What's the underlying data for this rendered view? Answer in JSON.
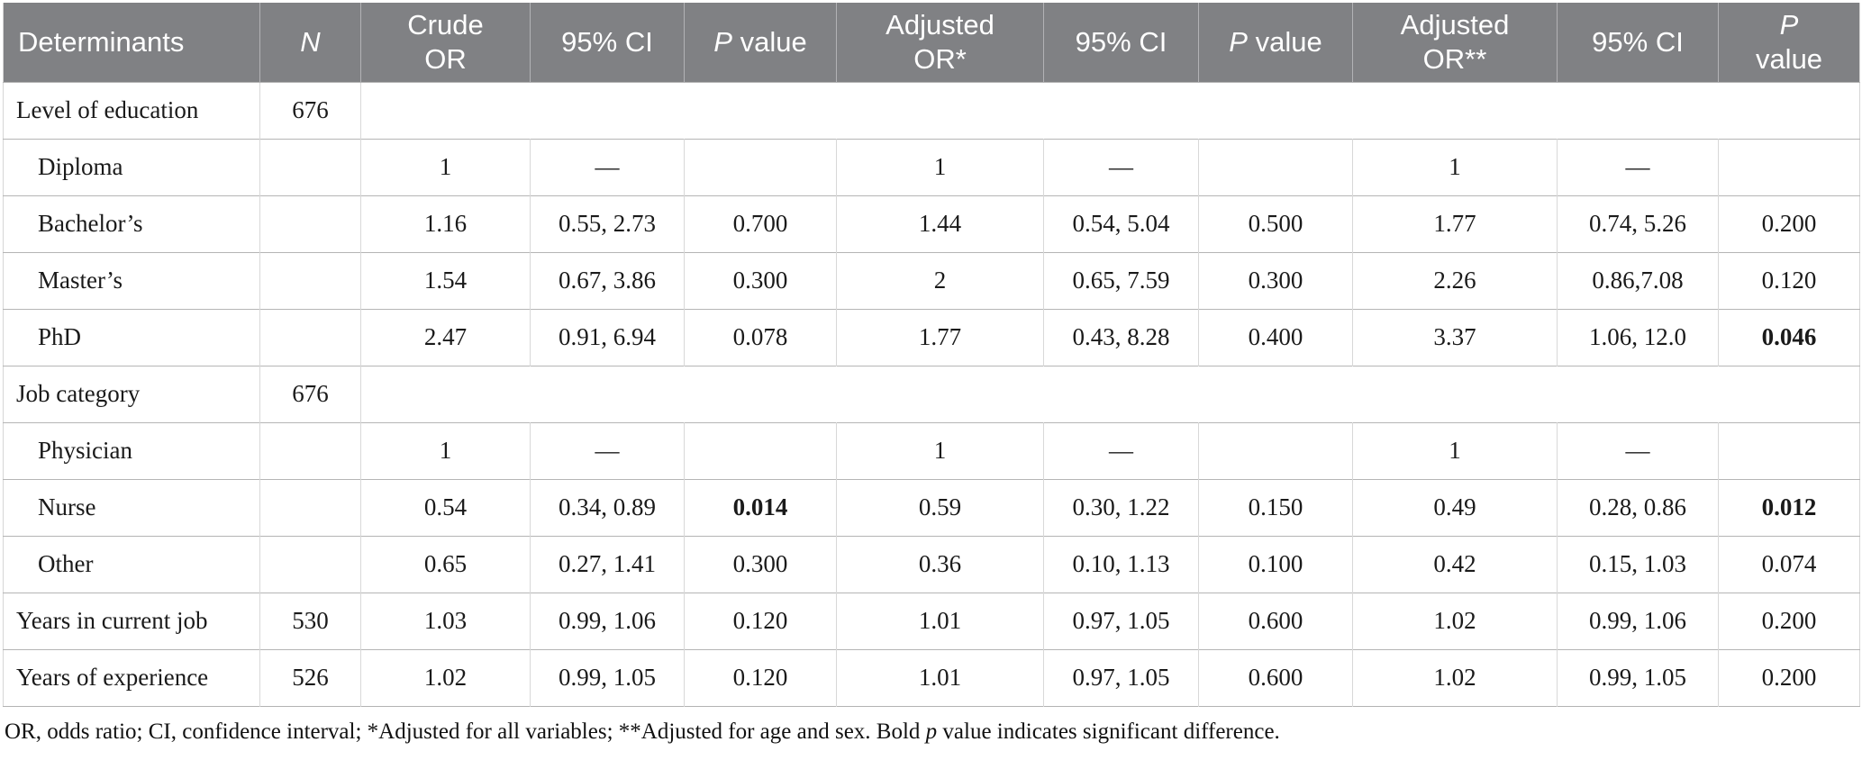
{
  "colors": {
    "header_bg": "#808184",
    "header_text": "#ffffff",
    "row_border": "#b5b5b5",
    "col_border": "#d8d8d8"
  },
  "table": {
    "columns": [
      {
        "label": "Determinants",
        "italic": "none"
      },
      {
        "label": "N",
        "italic": "full"
      },
      {
        "label": "Crude OR",
        "italic": "none"
      },
      {
        "label": "95% CI",
        "italic": "none"
      },
      {
        "label": "P value",
        "italic": "lead"
      },
      {
        "label": "Adjusted OR*",
        "italic": "none"
      },
      {
        "label": "95% CI",
        "italic": "none"
      },
      {
        "label": "P value",
        "italic": "lead"
      },
      {
        "label": "Adjusted OR**",
        "italic": "none"
      },
      {
        "label": "95% CI",
        "italic": "none"
      },
      {
        "label": "P value",
        "italic": "lead"
      }
    ],
    "rows": [
      {
        "label": "Level of education",
        "n": "676",
        "indent": false,
        "merged": true,
        "cells": [],
        "bold_cells": []
      },
      {
        "label": "Diploma",
        "n": "",
        "indent": true,
        "merged": false,
        "cells": [
          "1",
          "—",
          "",
          "1",
          "—",
          "",
          "1",
          "—",
          ""
        ],
        "bold_cells": []
      },
      {
        "label": "Bachelor’s",
        "n": "",
        "indent": true,
        "merged": false,
        "cells": [
          "1.16",
          "0.55, 2.73",
          "0.700",
          "1.44",
          "0.54, 5.04",
          "0.500",
          "1.77",
          "0.74, 5.26",
          "0.200"
        ],
        "bold_cells": []
      },
      {
        "label": "Master’s",
        "n": "",
        "indent": true,
        "merged": false,
        "cells": [
          "1.54",
          "0.67, 3.86",
          "0.300",
          "2",
          "0.65, 7.59",
          "0.300",
          "2.26",
          "0.86,7.08",
          "0.120"
        ],
        "bold_cells": []
      },
      {
        "label": "PhD",
        "n": "",
        "indent": true,
        "merged": false,
        "cells": [
          "2.47",
          "0.91, 6.94",
          "0.078",
          "1.77",
          "0.43, 8.28",
          "0.400",
          "3.37",
          "1.06, 12.0",
          "0.046"
        ],
        "bold_cells": [
          8
        ]
      },
      {
        "label": "Job category",
        "n": "676",
        "indent": false,
        "merged": true,
        "cells": [],
        "bold_cells": []
      },
      {
        "label": "Physician",
        "n": "",
        "indent": true,
        "merged": false,
        "cells": [
          "1",
          "—",
          "",
          "1",
          "—",
          "",
          "1",
          "—",
          ""
        ],
        "bold_cells": []
      },
      {
        "label": "Nurse",
        "n": "",
        "indent": true,
        "merged": false,
        "cells": [
          "0.54",
          "0.34, 0.89",
          "0.014",
          "0.59",
          "0.30, 1.22",
          "0.150",
          "0.49",
          "0.28, 0.86",
          "0.012"
        ],
        "bold_cells": [
          2,
          8
        ]
      },
      {
        "label": "Other",
        "n": "",
        "indent": true,
        "merged": false,
        "cells": [
          "0.65",
          "0.27, 1.41",
          "0.300",
          "0.36",
          "0.10, 1.13",
          "0.100",
          "0.42",
          "0.15, 1.03",
          "0.074"
        ],
        "bold_cells": []
      },
      {
        "label": "Years in current job",
        "n": "530",
        "indent": false,
        "merged": false,
        "cells": [
          "1.03",
          "0.99, 1.06",
          "0.120",
          "1.01",
          "0.97, 1.05",
          "0.600",
          "1.02",
          "0.99, 1.06",
          "0.200"
        ],
        "bold_cells": []
      },
      {
        "label": "Years of experience",
        "n": "526",
        "indent": false,
        "merged": false,
        "cells": [
          "1.02",
          "0.99, 1.05",
          "0.120",
          "1.01",
          "0.97, 1.05",
          "0.600",
          "1.02",
          "0.99, 1.05",
          "0.200"
        ],
        "bold_cells": []
      }
    ],
    "footnote_parts": [
      {
        "text": "OR, odds ratio; CI, confidence interval; *Adjusted for all variables; **Adjusted for age and sex. Bold ",
        "italic": false
      },
      {
        "text": "p",
        "italic": true
      },
      {
        "text": " value indicates significant difference.",
        "italic": false
      }
    ]
  }
}
